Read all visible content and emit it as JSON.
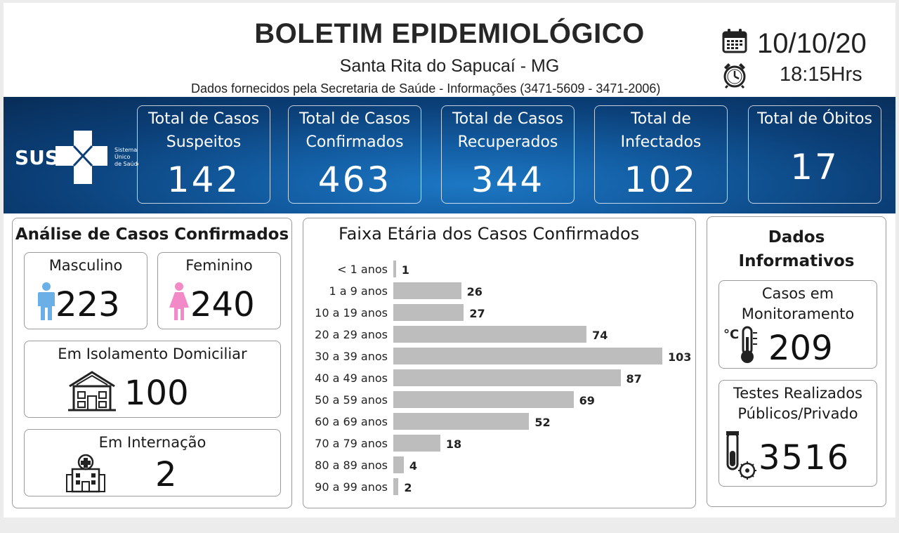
{
  "header": {
    "title": "BOLETIM EPIDEMIOLÓGICO",
    "subtitle": "Santa Rita do Sapucaí - MG",
    "source": "Dados fornecidos pela Secretaria de Saúde - Informações (3471-5609 - 3471-2006)",
    "date": "10/10/20",
    "time": "18:15Hrs"
  },
  "logo": {
    "text": "SUS",
    "sub": [
      "Sistema",
      "Único",
      "de Saúde"
    ]
  },
  "kpis": [
    {
      "label_1": "Total de Casos",
      "label_2": "Suspeitos",
      "value": "142"
    },
    {
      "label_1": "Total de Casos",
      "label_2": "Confirmados",
      "value": "463"
    },
    {
      "label_1": "Total de Casos",
      "label_2": "Recuperados",
      "value": "344"
    },
    {
      "label_1": "Total de",
      "label_2": "Infectados",
      "value": "102"
    },
    {
      "label_1": "Total de Óbitos",
      "label_2": "",
      "value": "17"
    }
  ],
  "analysis": {
    "title": "Análise de Casos Confirmados",
    "male": {
      "label": "Masculino",
      "value": "223",
      "icon": "male-icon",
      "color": "#6ab0e6"
    },
    "female": {
      "label": "Feminino",
      "value": "240",
      "icon": "female-icon",
      "color": "#f28ac8"
    },
    "isolation": {
      "label": "Em Isolamento Domiciliar",
      "value": "100",
      "icon": "house-icon"
    },
    "hospital": {
      "label": "Em Internação",
      "value": "2",
      "icon": "hospital-icon"
    }
  },
  "chart_data": {
    "type": "bar",
    "orientation": "horizontal",
    "title": "Faixa Etária dos Casos Confirmados",
    "categories": [
      "< 1 anos",
      "1 a 9 anos",
      "10 a 19 anos",
      "20 a 29 anos",
      "30 a 39 anos",
      "40 a 49 anos",
      "50 a 59 anos",
      "60 a 69 anos",
      "70 a 79 anos",
      "80 a 89 anos",
      "90 a 99 anos"
    ],
    "values": [
      1,
      26,
      27,
      74,
      103,
      87,
      69,
      52,
      18,
      4,
      2
    ],
    "xlim": [
      0,
      103
    ],
    "bar_color": "#bdbdbd",
    "grid": false
  },
  "info": {
    "title_1": "Dados",
    "title_2": "Informativos",
    "monitoring": {
      "label_1": "Casos em",
      "label_2": "Monitoramento",
      "value": "209",
      "icon": "thermometer-icon"
    },
    "tests": {
      "label_1": "Testes Realizados",
      "label_2": "Públicos/Privado",
      "value": "3516",
      "icon": "test-tube-virus-icon"
    }
  },
  "colors": {
    "banner": "#0b3f77",
    "banner_light": "#1d78c4",
    "border": "#9a9a9a"
  }
}
